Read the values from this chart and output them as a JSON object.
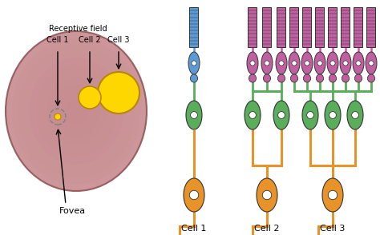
{
  "bg_color": "#ffffff",
  "eye_color": "#c4868a",
  "eye_edge_color": "#8a5050",
  "blue_color": "#5b9bd5",
  "green_color": "#5aad5a",
  "orange_color": "#e8922a",
  "purple_color": "#c060a0",
  "yellow_color": "#ffd700",
  "yellow_edge": "#b8860b",
  "dark_line": "#333333",
  "white_color": "#ffffff",
  "cell_labels": [
    "Cell 1",
    "Cell 2",
    "Cell 3"
  ],
  "fovea_label": "Fovea",
  "receptive_field_label": "Receptive field"
}
